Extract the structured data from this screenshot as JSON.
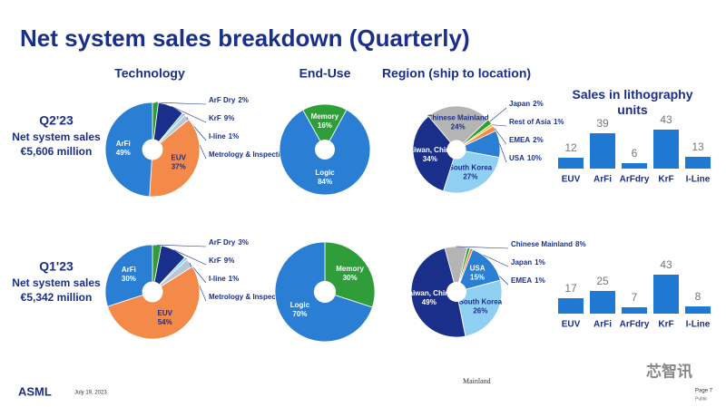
{
  "title": "Net system sales breakdown (Quarterly)",
  "headers": {
    "technology": "Technology",
    "end_use": "End-Use",
    "region": "Region (ship to location)",
    "units": "Sales in lithography units"
  },
  "quarters": [
    {
      "label": "Q2'23",
      "caption": "Net system sales",
      "amount": "€5,606 million"
    },
    {
      "label": "Q1'23",
      "caption": "Net system sales",
      "amount": "€5,342 million"
    }
  ],
  "footer": {
    "logo": "ASML",
    "date": "July 19, 2023",
    "page": "Page 7",
    "classification": "Public",
    "stray": "Mainland",
    "watermark": "芯智讯"
  },
  "chart_data": [
    {
      "type": "pie",
      "categories": [
        "ArF Dry",
        "KrF",
        "I-line",
        "Metrology & Inspection",
        "EUV",
        "ArFi"
      ],
      "values": [
        2,
        9,
        1,
        2,
        37,
        49
      ],
      "value_labels": [
        "2%",
        "9%",
        "1%",
        "2%",
        "37%",
        "49%"
      ],
      "colors": [
        "#2f9e3a",
        "#1a2f8a",
        "#8fd0f2",
        "#b8c6d8",
        "#f48a4a",
        "#2a7fd4"
      ]
    },
    {
      "type": "pie",
      "categories": [
        "Memory",
        "Logic"
      ],
      "values": [
        16,
        84
      ],
      "value_labels": [
        "16%",
        "84%"
      ],
      "colors": [
        "#2f9e3a",
        "#2a7fd4"
      ]
    },
    {
      "type": "pie",
      "categories": [
        "Chinese Mainland",
        "Japan",
        "Rest of Asia",
        "EMEA",
        "USA",
        "South Korea",
        "Taiwan, China"
      ],
      "values": [
        24,
        2,
        1,
        2,
        10,
        27,
        34
      ],
      "value_labels": [
        "24%",
        "2%",
        "1%",
        "2%",
        "10%",
        "27%",
        "34%"
      ],
      "colors": [
        "#b4b4b4",
        "#2f9e3a",
        "#e8c630",
        "#f48a4a",
        "#2a7fd4",
        "#8fd0f2",
        "#1a2f8a"
      ]
    },
    {
      "type": "bar",
      "categories": [
        "EUV",
        "ArFi",
        "ArFdry",
        "KrF",
        "I-Line"
      ],
      "values": [
        12,
        39,
        6,
        43,
        13
      ],
      "color": "#1f78d1"
    },
    {
      "type": "pie",
      "categories": [
        "ArF Dry",
        "KrF",
        "I-line",
        "Metrology & Inspection",
        "EUV",
        "ArFi"
      ],
      "values": [
        3,
        9,
        1,
        3,
        54,
        30
      ],
      "value_labels": [
        "3%",
        "9%",
        "1%",
        "3%",
        "54%",
        "30%"
      ],
      "colors": [
        "#2f9e3a",
        "#1a2f8a",
        "#8fd0f2",
        "#b8c6d8",
        "#f48a4a",
        "#2a7fd4"
      ]
    },
    {
      "type": "pie",
      "categories": [
        "Memory",
        "Logic"
      ],
      "values": [
        30,
        70
      ],
      "value_labels": [
        "30%",
        "70%"
      ],
      "colors": [
        "#2f9e3a",
        "#2a7fd4"
      ]
    },
    {
      "type": "pie",
      "categories": [
        "Chinese Mainland",
        "Japan",
        "EMEA",
        "USA",
        "South Korea",
        "Taiwan, China"
      ],
      "values": [
        8,
        1,
        1,
        15,
        26,
        49
      ],
      "value_labels": [
        "8%",
        "1%",
        "1%",
        "15%",
        "26%",
        "49%"
      ],
      "colors": [
        "#b4b4b4",
        "#2f9e3a",
        "#f48a4a",
        "#2a7fd4",
        "#8fd0f2",
        "#1a2f8a"
      ]
    },
    {
      "type": "bar",
      "categories": [
        "EUV",
        "ArFi",
        "ArFdry",
        "KrF",
        "I-Line"
      ],
      "values": [
        17,
        25,
        7,
        43,
        8
      ],
      "color": "#1f78d1"
    }
  ]
}
